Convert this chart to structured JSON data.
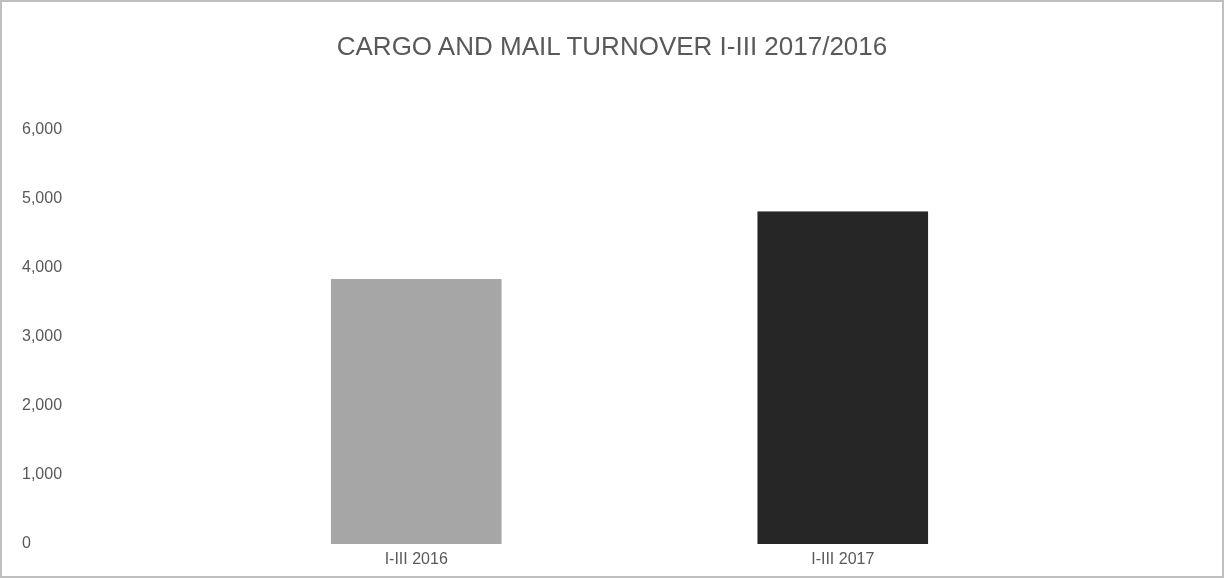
{
  "chart_data": {
    "type": "bar",
    "title": "CARGO AND MAIL TURNOVER I-III 2017/2016",
    "categories": [
      "I-III 2016",
      "I-III 2017"
    ],
    "values": [
      3840,
      4820
    ],
    "colors": [
      "#a6a6a6",
      "#262626"
    ],
    "ylim": [
      0,
      6000
    ],
    "yticks": [
      {
        "value": 0,
        "label": "0"
      },
      {
        "value": 1000,
        "label": "1,000"
      },
      {
        "value": 2000,
        "label": "2,000"
      },
      {
        "value": 3000,
        "label": "3,000"
      },
      {
        "value": 4000,
        "label": "4,000"
      },
      {
        "value": 5000,
        "label": "5,000"
      },
      {
        "value": 6000,
        "label": "6,000"
      }
    ],
    "grid": false
  }
}
